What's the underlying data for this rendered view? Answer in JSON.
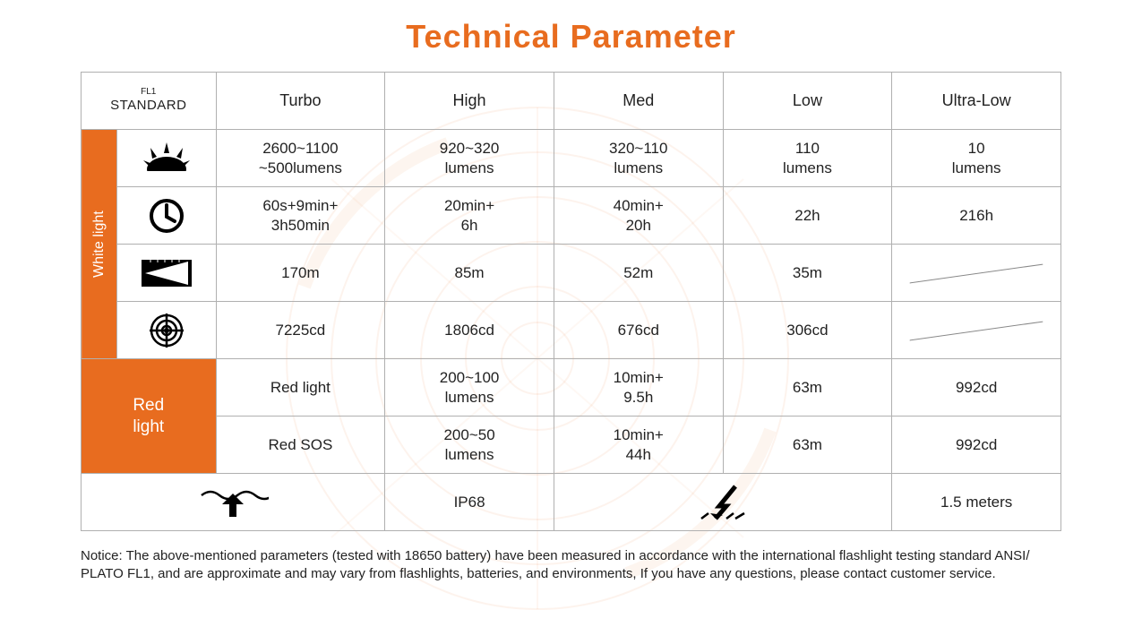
{
  "title": "Technical Parameter",
  "colors": {
    "accent": "#e86c1f",
    "border": "#b0b0b0",
    "text": "#222222",
    "bg": "#ffffff",
    "iconFill": "#000000",
    "white": "#ffffff"
  },
  "header": {
    "fl1_top": "FL1",
    "fl1_bottom": "STANDARD",
    "cols": [
      "Turbo",
      "High",
      "Med",
      "Low",
      "Ultra-Low"
    ]
  },
  "sideLabels": {
    "white": "White light",
    "red": "Red\nlight"
  },
  "iconRows": [
    "lumens-icon",
    "runtime-icon",
    "beam-icon",
    "intensity-icon"
  ],
  "whiteRows": [
    [
      "2600~1100\n~500lumens",
      "920~320\nlumens",
      "320~110\nlumens",
      "110\nlumens",
      "10\nlumens"
    ],
    [
      "60s+9min+\n3h50min",
      "20min+\n6h",
      "40min+\n20h",
      "22h",
      "216h"
    ],
    [
      "170m",
      "85m",
      "52m",
      "35m",
      ""
    ],
    [
      "7225cd",
      "1806cd",
      "676cd",
      "306cd",
      ""
    ]
  ],
  "redRows": [
    [
      "Red light",
      "200~100\nlumens",
      "10min+\n9.5h",
      "63m",
      "992cd"
    ],
    [
      "Red SOS",
      "200~50\nlumens",
      "10min+\n44h",
      "63m",
      "992cd"
    ]
  ],
  "bottom": {
    "ip": "IP68",
    "drop": "1.5 meters"
  },
  "notice": "Notice: The above-mentioned parameters (tested with 18650 battery)  have been measured in accordance with the international flashlight testing standard ANSI/ PLATO FL1, and are approximate and may vary from flashlights, batteries, and environments, If you have any questions, please contact customer service."
}
